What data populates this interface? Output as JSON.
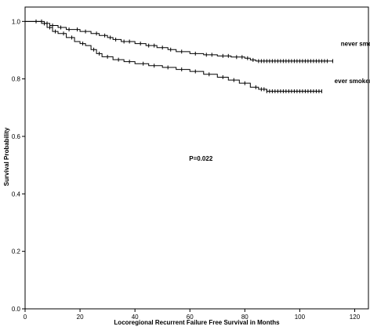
{
  "chart_data": {
    "type": "line",
    "step": true,
    "xlabel": "Locoregional Recurrent Failure Free Survival in Months",
    "ylabel": "Survival Probability",
    "xlim": [
      0,
      125
    ],
    "ylim": [
      0,
      1.05
    ],
    "xticks": [
      0,
      20,
      40,
      60,
      80,
      100,
      120
    ],
    "yticks": [
      0.0,
      0.2,
      0.4,
      0.6,
      0.8,
      1.0
    ],
    "xtick_labels": [
      "0",
      "20",
      "40",
      "60",
      "80",
      "100",
      "120"
    ],
    "ytick_labels": [
      "0.0",
      "0.2",
      "0.4",
      "0.6",
      "0.8",
      "1.0"
    ],
    "grid": false,
    "annotations": [
      {
        "text": "P=0.022",
        "x": 64,
        "y": 0.515
      }
    ],
    "series": [
      {
        "name": "never smokers",
        "label_at": {
          "x": 123,
          "y": 0.915
        },
        "points": [
          [
            0,
            1.0
          ],
          [
            5,
            1.0
          ],
          [
            7,
            0.993
          ],
          [
            9,
            0.986
          ],
          [
            12,
            0.979
          ],
          [
            15,
            0.972
          ],
          [
            20,
            0.965
          ],
          [
            24,
            0.958
          ],
          [
            27,
            0.951
          ],
          [
            30,
            0.944
          ],
          [
            32,
            0.937
          ],
          [
            35,
            0.93
          ],
          [
            40,
            0.923
          ],
          [
            44,
            0.916
          ],
          [
            48,
            0.909
          ],
          [
            52,
            0.902
          ],
          [
            55,
            0.895
          ],
          [
            60,
            0.888
          ],
          [
            65,
            0.884
          ],
          [
            70,
            0.88
          ],
          [
            75,
            0.876
          ],
          [
            80,
            0.872
          ],
          [
            82,
            0.866
          ],
          [
            84,
            0.862
          ],
          [
            112,
            0.862
          ]
        ],
        "censor": [
          6,
          8,
          10,
          13,
          16,
          19,
          22,
          26,
          29,
          31,
          33,
          36,
          38,
          42,
          45,
          47,
          50,
          53,
          57,
          62,
          66,
          68,
          72,
          74,
          77,
          79,
          81,
          83,
          85,
          86,
          87,
          88,
          89,
          90,
          91,
          92,
          93,
          94,
          95,
          96,
          97,
          98,
          99,
          100,
          101,
          102,
          103,
          104,
          105,
          106,
          107,
          108,
          109,
          110,
          112
        ]
      },
      {
        "name": "ever smokers",
        "label_at": {
          "x": 120,
          "y": 0.785
        },
        "points": [
          [
            0,
            1.0
          ],
          [
            3,
            1.0
          ],
          [
            6,
            0.993
          ],
          [
            8,
            0.979
          ],
          [
            10,
            0.965
          ],
          [
            12,
            0.958
          ],
          [
            15,
            0.944
          ],
          [
            18,
            0.93
          ],
          [
            20,
            0.923
          ],
          [
            22,
            0.916
          ],
          [
            24,
            0.902
          ],
          [
            26,
            0.888
          ],
          [
            28,
            0.877
          ],
          [
            32,
            0.867
          ],
          [
            36,
            0.86
          ],
          [
            40,
            0.853
          ],
          [
            45,
            0.846
          ],
          [
            50,
            0.84
          ],
          [
            55,
            0.833
          ],
          [
            60,
            0.826
          ],
          [
            65,
            0.816
          ],
          [
            70,
            0.806
          ],
          [
            74,
            0.796
          ],
          [
            78,
            0.785
          ],
          [
            82,
            0.771
          ],
          [
            85,
            0.764
          ],
          [
            88,
            0.757
          ],
          [
            108,
            0.757
          ]
        ],
        "censor": [
          4,
          7,
          9,
          11,
          14,
          17,
          21,
          25,
          27,
          30,
          34,
          38,
          43,
          47,
          52,
          57,
          62,
          67,
          72,
          76,
          80,
          84,
          86,
          87,
          88,
          89,
          90,
          91,
          92,
          93,
          94,
          95,
          96,
          97,
          98,
          99,
          100,
          101,
          102,
          103,
          104,
          105,
          106,
          107,
          108
        ]
      }
    ]
  }
}
